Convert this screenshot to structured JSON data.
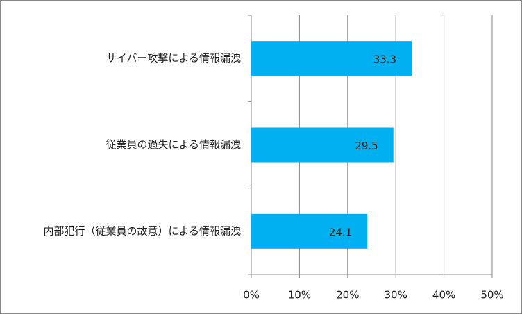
{
  "chart_data": {
    "type": "bar",
    "orientation": "horizontal",
    "categories": [
      "サイバー攻撃による情報漏洩",
      "従業員の過失による情報漏洩",
      "内部犯行（従業員の故意）による情報漏洩"
    ],
    "values": [
      33.3,
      29.5,
      24.1
    ],
    "color": "#00b0f0",
    "xlim": [
      0,
      50
    ],
    "xticks": [
      {
        "value": 0,
        "label": "0%"
      },
      {
        "value": 10,
        "label": "10%"
      },
      {
        "value": 20,
        "label": "20%"
      },
      {
        "value": 30,
        "label": "30%"
      },
      {
        "value": 40,
        "label": "40%"
      },
      {
        "value": 50,
        "label": "50%"
      }
    ],
    "grid": true
  }
}
